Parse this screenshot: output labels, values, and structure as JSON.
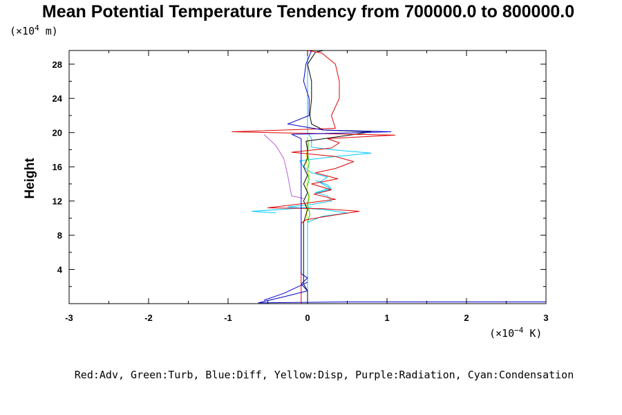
{
  "chart_data": {
    "type": "line",
    "title": "Mean Potential Temperature Tendency from 700000.0 to 800000.0",
    "ylabel": "Height",
    "y_unit_prefix": "(×10",
    "y_unit_exp": "4",
    "y_unit_suffix": " m)",
    "x_unit_prefix": "(×10",
    "x_unit_exp": "−4",
    "x_unit_suffix": " K)",
    "legend_text": "Red:Adv, Green:Turb, Blue:Diff, Yellow:Disp, Purple:Radiation, Cyan:Condensation",
    "xlim": [
      -3,
      3
    ],
    "ylim": [
      0,
      29.6
    ],
    "x_ticks": [
      -3,
      -2,
      -1,
      0,
      1,
      2,
      3
    ],
    "x_tick_labels": [
      "-3",
      "-2",
      "-1",
      "0",
      "1",
      "2",
      "3"
    ],
    "y_ticks": [
      4,
      8,
      12,
      16,
      20,
      24,
      28
    ],
    "y_tick_labels": [
      "4",
      "8",
      "12",
      "16",
      "20",
      "24",
      "28"
    ],
    "series": [
      {
        "color": "#00c8ff",
        "points": [
          [
            0,
            0.1
          ],
          [
            0,
            9.5
          ],
          [
            0.18,
            10.2
          ],
          [
            0.5,
            10.6
          ],
          [
            0.2,
            11
          ],
          [
            -0.25,
            11.3
          ],
          [
            0.05,
            11.6
          ],
          [
            0.3,
            12
          ],
          [
            0.25,
            12.6
          ],
          [
            0.1,
            13
          ],
          [
            0.28,
            13.5
          ],
          [
            0.15,
            14.2
          ],
          [
            0.25,
            14.8
          ],
          [
            0.05,
            15.3
          ],
          [
            -0.05,
            16
          ],
          [
            -0.1,
            16.7
          ],
          [
            0.35,
            17.2
          ],
          [
            0.8,
            17.6
          ],
          [
            0.3,
            18
          ],
          [
            0.05,
            18.3
          ],
          [
            0.05,
            19.3
          ],
          [
            0,
            20
          ],
          [
            0,
            29.6
          ]
        ]
      },
      {
        "color": "#00c8ff",
        "points": [
          [
            -0.4,
            10.6
          ],
          [
            -0.7,
            10.8
          ],
          [
            -0.2,
            11.1
          ],
          [
            0.05,
            11.3
          ]
        ]
      },
      {
        "color": "#00c8ff",
        "points": [
          [
            0.1,
            12.9
          ],
          [
            0.3,
            13.4
          ],
          [
            0.25,
            13.9
          ],
          [
            0.1,
            14.4
          ]
        ]
      },
      {
        "color": "#b864d8",
        "points": [
          [
            -0.55,
            19.8
          ],
          [
            -0.4,
            18.5
          ],
          [
            -0.3,
            17
          ],
          [
            -0.25,
            15
          ],
          [
            -0.22,
            13.5
          ],
          [
            -0.2,
            12.6
          ],
          [
            -0.05,
            12.3
          ]
        ]
      },
      {
        "color": "#00c800",
        "points": [
          [
            0,
            9.5
          ],
          [
            0.03,
            10.5
          ],
          [
            0,
            11.5
          ],
          [
            0.02,
            12.5
          ],
          [
            -0.01,
            13.5
          ],
          [
            0.02,
            14.5
          ],
          [
            0,
            15.5
          ],
          [
            0.02,
            16.5
          ],
          [
            0,
            17.5
          ],
          [
            0.01,
            18.5
          ],
          [
            0,
            19.5
          ]
        ]
      },
      {
        "color": "#e8e800",
        "points": [
          [
            0,
            9.6
          ],
          [
            -0.02,
            11
          ],
          [
            0.01,
            12.4
          ],
          [
            -0.01,
            13.9
          ],
          [
            0.01,
            15.4
          ],
          [
            -0.02,
            16.9
          ],
          [
            0,
            18.3
          ],
          [
            0,
            19.5
          ]
        ]
      },
      {
        "color": "#000000",
        "points": [
          [
            0,
            0.1
          ],
          [
            0,
            1.5
          ],
          [
            -0.05,
            2.3
          ],
          [
            -0.05,
            9.5
          ],
          [
            0,
            11
          ],
          [
            -0.05,
            12
          ],
          [
            0,
            13
          ],
          [
            -0.05,
            14
          ],
          [
            0,
            15
          ],
          [
            -0.05,
            16
          ],
          [
            0,
            17
          ],
          [
            0,
            18
          ],
          [
            -0.02,
            19
          ],
          [
            0.6,
            19.8
          ],
          [
            0.8,
            20.1
          ],
          [
            0.2,
            20.3
          ],
          [
            0.05,
            21
          ],
          [
            0.03,
            22
          ],
          [
            0.05,
            24
          ],
          [
            0.05,
            26
          ],
          [
            0,
            28
          ],
          [
            0.1,
            29.4
          ],
          [
            0.2,
            29.6
          ]
        ]
      },
      {
        "color": "#dd0000",
        "points": [
          [
            -0.08,
            0
          ],
          [
            -0.08,
            9.4
          ],
          [
            -0.02,
            9.8
          ],
          [
            0.3,
            10.3
          ],
          [
            0.65,
            10.8
          ],
          [
            0.2,
            11.1
          ],
          [
            -0.5,
            11.2
          ],
          [
            -0.05,
            11.7
          ],
          [
            0.35,
            12.2
          ],
          [
            0.08,
            12.8
          ],
          [
            0.3,
            13.3
          ],
          [
            0.05,
            14
          ],
          [
            0.38,
            14.6
          ],
          [
            0.1,
            15.3
          ],
          [
            0.35,
            15.8
          ],
          [
            0.58,
            16.6
          ],
          [
            0.35,
            17.2
          ],
          [
            -0.2,
            17.7
          ],
          [
            0.3,
            18.2
          ],
          [
            0.4,
            18.8
          ],
          [
            0.25,
            19.3
          ],
          [
            1.1,
            19.7
          ],
          [
            -0.95,
            20.1
          ],
          [
            0.35,
            20.5
          ],
          [
            0.3,
            22
          ],
          [
            0.4,
            24
          ],
          [
            0.4,
            26
          ],
          [
            0.35,
            28
          ],
          [
            0.18,
            29.3
          ],
          [
            0,
            29.6
          ]
        ]
      },
      {
        "color": "#0000cc",
        "points": [
          [
            3,
            0.2
          ],
          [
            0.5,
            0.2
          ],
          [
            -0.62,
            0.1
          ],
          [
            -0.3,
            0.8
          ],
          [
            0,
            1.5
          ],
          [
            -0.08,
            2.3
          ],
          [
            0,
            3
          ],
          [
            -0.08,
            3.5
          ],
          [
            -0.08,
            19.3
          ],
          [
            -0.2,
            19.8
          ],
          [
            1.05,
            20.1
          ],
          [
            0.2,
            20.3
          ],
          [
            -0.25,
            21
          ],
          [
            0.02,
            22
          ],
          [
            0.02,
            24
          ],
          [
            -0.05,
            26
          ],
          [
            -0.02,
            28
          ],
          [
            0.05,
            29.6
          ]
        ]
      },
      {
        "color": "#0000cc",
        "points": [
          [
            0,
            2.5
          ],
          [
            -0.3,
            1.2
          ],
          [
            -0.55,
            0.4
          ]
        ]
      }
    ]
  }
}
